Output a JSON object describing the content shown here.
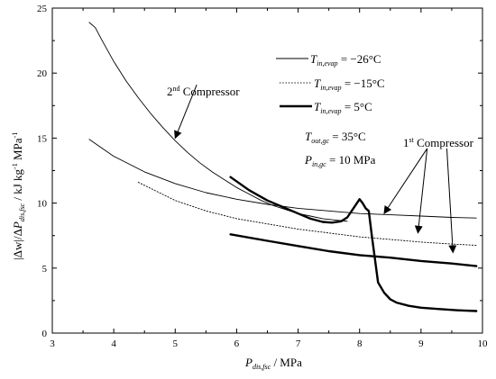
{
  "chart_data": {
    "type": "line",
    "xlim": [
      3,
      10
    ],
    "ylim": [
      0,
      25
    ],
    "xticks": [
      3,
      4,
      5,
      6,
      7,
      8,
      9,
      10
    ],
    "yticks": [
      0,
      5,
      10,
      15,
      20,
      25
    ],
    "xticks_labels": [
      "3",
      "4",
      "5",
      "6",
      "7",
      "8",
      "9",
      "10"
    ],
    "yticks_labels": [
      "0",
      "5",
      "10",
      "15",
      "20",
      "25"
    ],
    "grid": false,
    "xlabel": {
      "symbol": "P",
      "sub": "dis,fsc",
      "unit": " / MPa"
    },
    "ylabel": {
      "prefix": "|Δw|/Δ",
      "symbol": "P",
      "sub": "dis,fsc",
      "unit": " / kJ kg",
      "unit_sup": "-1",
      "unit_end": " MPa",
      "unit_end_sup": "-1"
    },
    "legend": [
      {
        "symbol": "T",
        "sub": "in,evap",
        "value": " = −26°C",
        "style": "thin-solid"
      },
      {
        "symbol": "T",
        "sub": "in,evap",
        "value": " = −15°C",
        "style": "dotted"
      },
      {
        "symbol": "T",
        "sub": "in,evap",
        "value": " = 5°C",
        "style": "thick-solid"
      }
    ],
    "conditions": [
      {
        "symbol": "T",
        "sub": "out,gc",
        "value": " = 35°C"
      },
      {
        "symbol": "P",
        "sub": "in,gc",
        "value": " = 10 MPa"
      }
    ],
    "annotations": [
      {
        "prefix": "2",
        "sup": "nd",
        "rest": " Compressor"
      },
      {
        "prefix": "1",
        "sup": "st",
        "rest": " Compressor"
      }
    ],
    "series": [
      {
        "style": "thin-solid",
        "x": [
          3.6,
          3.7,
          3.8,
          4.0,
          4.2,
          4.4,
          4.6,
          4.8,
          5.0,
          5.2,
          5.4,
          5.6,
          5.8,
          6.0,
          6.2,
          6.4,
          6.6,
          6.8,
          7.0,
          7.2,
          7.4,
          7.6,
          7.8
        ],
        "y": [
          23.9,
          23.5,
          22.6,
          20.9,
          19.4,
          18.1,
          16.9,
          15.8,
          14.8,
          13.9,
          13.1,
          12.4,
          11.8,
          11.2,
          10.7,
          10.2,
          9.8,
          9.5,
          9.2,
          9.0,
          8.8,
          8.7,
          8.6
        ]
      },
      {
        "style": "thin-solid",
        "x": [
          3.6,
          4.0,
          4.5,
          5.0,
          5.5,
          6.0,
          6.5,
          7.0,
          7.5,
          8.0,
          8.5,
          9.0,
          9.5,
          9.9
        ],
        "y": [
          14.9,
          13.6,
          12.4,
          11.5,
          10.8,
          10.3,
          9.9,
          9.6,
          9.4,
          9.2,
          9.1,
          9.0,
          8.9,
          8.85
        ]
      },
      {
        "style": "dotted",
        "x": [
          4.4,
          5.0,
          5.5,
          6.0,
          6.5,
          7.0,
          7.5,
          8.0,
          8.5,
          9.0,
          9.5,
          9.9
        ],
        "y": [
          11.6,
          10.2,
          9.4,
          8.8,
          8.4,
          8.0,
          7.7,
          7.4,
          7.2,
          7.0,
          6.85,
          6.75
        ]
      },
      {
        "style": "thick-solid",
        "x": [
          5.9,
          6.2,
          6.5,
          6.8,
          7.0,
          7.2,
          7.4,
          7.55,
          7.7,
          7.8,
          7.9,
          8.0,
          8.05,
          8.1,
          8.15,
          8.2,
          8.3,
          8.4,
          8.5,
          8.6,
          8.8,
          9.0,
          9.3,
          9.6,
          9.9
        ],
        "y": [
          12.0,
          11.0,
          10.2,
          9.6,
          9.2,
          8.8,
          8.55,
          8.5,
          8.6,
          8.9,
          9.6,
          10.3,
          10.0,
          9.6,
          9.4,
          7.5,
          3.9,
          3.1,
          2.6,
          2.35,
          2.1,
          1.95,
          1.85,
          1.75,
          1.7
        ]
      },
      {
        "style": "thick-solid",
        "x": [
          5.9,
          6.5,
          7.0,
          7.5,
          8.0,
          8.5,
          9.0,
          9.5,
          9.9
        ],
        "y": [
          7.6,
          7.1,
          6.7,
          6.3,
          6.0,
          5.8,
          5.55,
          5.35,
          5.15
        ]
      }
    ],
    "arrows_data": [
      {
        "from": [
          5.35,
          19.1
        ],
        "to": [
          5.0,
          15.0
        ]
      },
      {
        "from": [
          9.1,
          14.2
        ],
        "to": [
          8.4,
          9.2
        ]
      },
      {
        "from": [
          9.1,
          14.2
        ],
        "to": [
          8.95,
          7.7
        ]
      },
      {
        "from": [
          9.42,
          14.2
        ],
        "to": [
          9.52,
          6.2
        ]
      }
    ]
  }
}
